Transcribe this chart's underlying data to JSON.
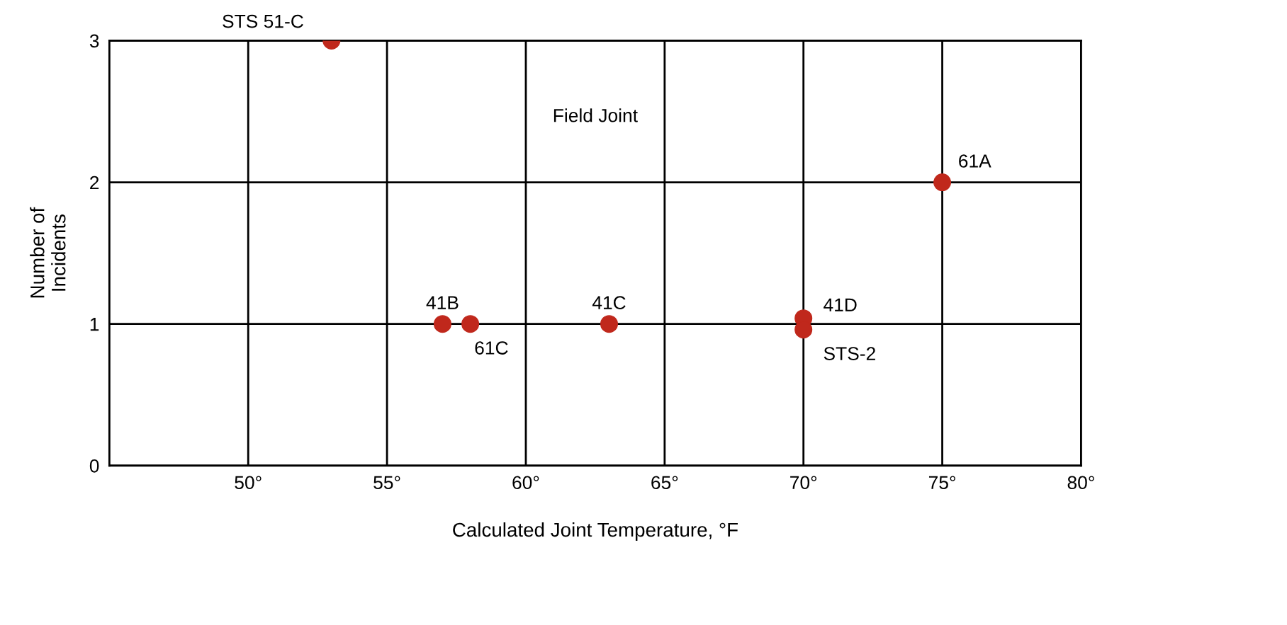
{
  "chart_data": {
    "type": "scatter",
    "xlabel": "Calculated Joint Temperature, °F",
    "ylabel": "Number of\nIncidents",
    "x": [
      53,
      57,
      58,
      63,
      70,
      70,
      75
    ],
    "values": [
      3,
      1,
      1,
      1,
      1.04,
      0.96,
      2
    ],
    "color": "#c0281c",
    "marker": "circle",
    "xlim": [
      45,
      80
    ],
    "xticks": [
      {
        "value": 50,
        "label": "50°"
      },
      {
        "value": 55,
        "label": "55°"
      },
      {
        "value": 60,
        "label": "60°"
      },
      {
        "value": 65,
        "label": "65°"
      },
      {
        "value": 70,
        "label": "70°"
      },
      {
        "value": 75,
        "label": "75°"
      },
      {
        "value": 80,
        "label": "80°"
      }
    ],
    "ylim": [
      0,
      3
    ],
    "yticks": [
      0,
      1,
      2,
      3
    ],
    "grid": true,
    "annotations": [
      {
        "text": "STS 51-C",
        "x": 53,
        "y": 3
      },
      {
        "text": "41B",
        "x": 57,
        "y": 1
      },
      {
        "text": "61C",
        "x": 58,
        "y": 1
      },
      {
        "text": "41C",
        "x": 63,
        "y": 1
      },
      {
        "text": "41D",
        "x": 70,
        "y": 1.04
      },
      {
        "text": "STS-2",
        "x": 70,
        "y": 0.96
      },
      {
        "text": "61A",
        "x": 75,
        "y": 2
      },
      "Field Joint"
    ]
  }
}
